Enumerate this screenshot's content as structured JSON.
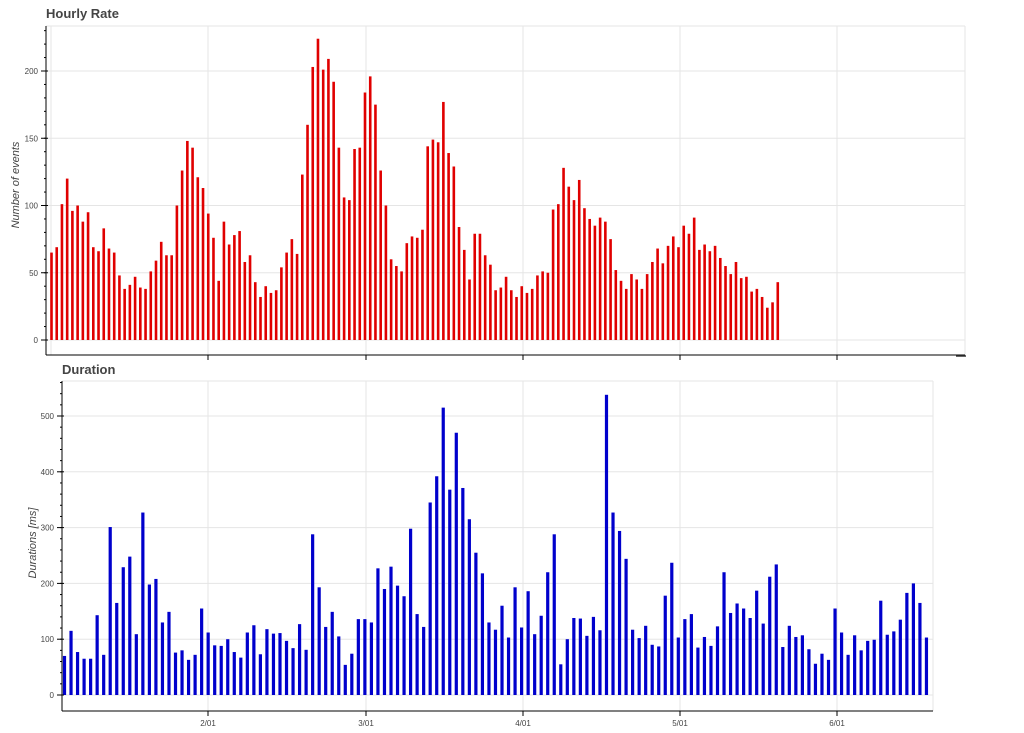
{
  "colors": {
    "rate": "#e00000",
    "duration": "#0000cc"
  },
  "chart_data": [
    {
      "type": "bar",
      "title": "Hourly Rate",
      "ylabel": "Number of events",
      "xlabel": "",
      "ylim": [
        0,
        230
      ],
      "yticks": [
        0,
        50,
        100,
        150,
        200
      ],
      "grid": true,
      "values": [
        65,
        69,
        101,
        120,
        96,
        100,
        88,
        95,
        69,
        66,
        83,
        68,
        65,
        48,
        38,
        41,
        47,
        39,
        38,
        51,
        59,
        73,
        63,
        63,
        100,
        126,
        148,
        143,
        121,
        113,
        94,
        76,
        44,
        88,
        71,
        78,
        81,
        58,
        63,
        43,
        32,
        40,
        35,
        37,
        54,
        65,
        75,
        64,
        123,
        160,
        203,
        224,
        201,
        209,
        192,
        143,
        106,
        104,
        142,
        143,
        184,
        196,
        175,
        126,
        100,
        60,
        55,
        51,
        72,
        77,
        76,
        82,
        144,
        149,
        147,
        177,
        139,
        129,
        84,
        67,
        45,
        79,
        79,
        63,
        56,
        37,
        39,
        47,
        37,
        32,
        40,
        35,
        38,
        48,
        51,
        50,
        97,
        101,
        128,
        114,
        104,
        119,
        98,
        90,
        85,
        91,
        88,
        75,
        52,
        44,
        38,
        49,
        45,
        38,
        49,
        58,
        68,
        57,
        70,
        77,
        69,
        85,
        79,
        91,
        67,
        71,
        66,
        70,
        61,
        55,
        49,
        58,
        46,
        47,
        36,
        38,
        32,
        24,
        28,
        43
      ]
    },
    {
      "type": "bar",
      "title": "Duration",
      "ylabel": "Durations [ms]",
      "xlabel": "",
      "ylim": [
        0,
        560
      ],
      "yticks": [
        0,
        100,
        200,
        300,
        400,
        500
      ],
      "xtick_labels": [
        "2/01",
        "3/01",
        "4/01",
        "5/01",
        "6/01"
      ],
      "grid": true,
      "values": [
        70,
        115,
        77,
        65,
        65,
        143,
        72,
        301,
        165,
        229,
        248,
        109,
        327,
        198,
        208,
        130,
        149,
        76,
        80,
        63,
        72,
        155,
        112,
        89,
        88,
        100,
        77,
        67,
        112,
        125,
        73,
        118,
        110,
        111,
        97,
        84,
        127,
        81,
        288,
        193,
        122,
        149,
        105,
        54,
        74,
        136,
        136,
        130,
        227,
        190,
        230,
        196,
        177,
        298,
        145,
        122,
        345,
        392,
        515,
        368,
        470,
        371,
        315,
        255,
        218,
        130,
        117,
        160,
        103,
        193,
        121,
        186,
        109,
        142,
        220,
        288,
        55,
        100,
        138,
        137,
        106,
        140,
        116,
        538,
        327,
        294,
        244,
        117,
        102,
        124,
        90,
        87,
        178,
        237,
        103,
        136,
        145,
        85,
        104,
        88,
        123,
        220,
        147,
        164,
        155,
        138,
        187,
        128,
        212,
        234,
        86,
        124,
        104,
        107,
        82,
        56,
        74,
        63,
        155,
        112,
        72,
        107,
        80,
        97,
        99,
        169,
        108,
        114,
        135,
        183,
        200,
        165,
        103
      ]
    }
  ]
}
